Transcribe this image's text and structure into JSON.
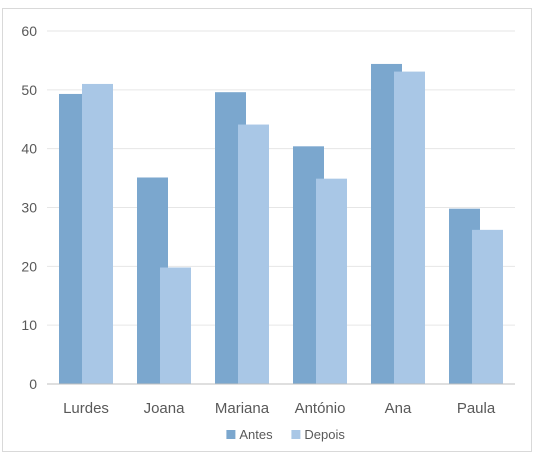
{
  "chart_data": {
    "type": "bar",
    "categories": [
      "Lurdes",
      "Joana",
      "Mariana",
      "António",
      "Ana",
      "Paula"
    ],
    "series": [
      {
        "name": "Antes",
        "values": [
          49.3,
          35.1,
          49.6,
          40.4,
          54.4,
          29.8
        ]
      },
      {
        "name": "Depois",
        "values": [
          51.0,
          19.8,
          44.1,
          34.9,
          53.1,
          26.2
        ]
      }
    ],
    "title": "",
    "xlabel": "",
    "ylabel": "",
    "ylim": [
      0,
      60
    ],
    "yticks": [
      "0",
      "10",
      "20",
      "30",
      "40",
      "50",
      "60"
    ],
    "grid": true,
    "legend_position": "bottom",
    "colors": {
      "Antes": "#7ba7ce",
      "Depois": "#a9c7e6",
      "grid": "#e6e6e6",
      "axis": "#bfbfbf",
      "text": "#595959"
    }
  }
}
